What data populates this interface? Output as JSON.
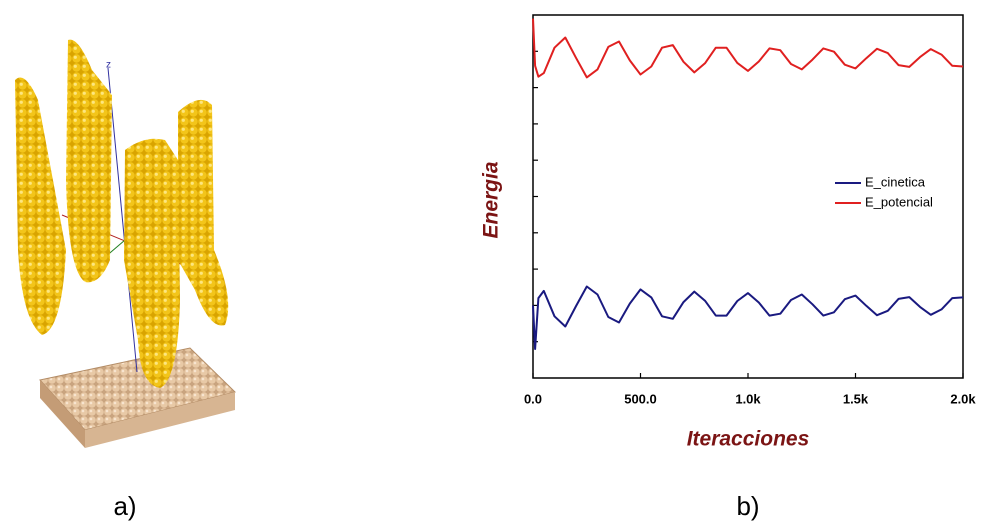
{
  "panel_labels": [
    "a)",
    "b)"
  ],
  "scene_axis_label": "z",
  "chart_data": {
    "type": "line",
    "ylabel": "Energia",
    "xlabel": "Iteracciones",
    "x": [
      0,
      10,
      25,
      50,
      100,
      150,
      200,
      250,
      300,
      350,
      400,
      450,
      500,
      550,
      600,
      650,
      700,
      750,
      800,
      850,
      900,
      950,
      1000,
      1050,
      1100,
      1150,
      1200,
      1250,
      1300,
      1350,
      1400,
      1450,
      1500,
      1550,
      1600,
      1650,
      1700,
      1750,
      1800,
      1850,
      1900,
      1950,
      2000
    ],
    "series": [
      {
        "name": "E_cinetica",
        "color": "#1a1a80",
        "values": [
          2.0,
          0.8,
          2.2,
          2.4,
          1.7,
          1.42,
          1.98,
          2.52,
          2.3,
          1.68,
          1.53,
          2.05,
          2.44,
          2.22,
          1.7,
          1.63,
          2.09,
          2.38,
          2.13,
          1.72,
          1.72,
          2.12,
          2.34,
          2.08,
          1.72,
          1.77,
          2.15,
          2.3,
          2.03,
          1.72,
          1.81,
          2.17,
          2.27,
          1.99,
          1.73,
          1.85,
          2.18,
          2.23,
          1.96,
          1.74,
          1.89,
          2.2,
          2.22
        ]
      },
      {
        "name": "E_potencial",
        "color": "#e02020",
        "values": [
          9.9,
          8.6,
          8.3,
          8.4,
          9.1,
          9.38,
          8.82,
          8.28,
          8.5,
          9.12,
          9.27,
          8.75,
          8.36,
          8.58,
          9.1,
          9.17,
          8.71,
          8.42,
          8.67,
          9.1,
          9.1,
          8.68,
          8.46,
          8.72,
          9.08,
          9.03,
          8.65,
          8.5,
          8.77,
          9.08,
          8.99,
          8.63,
          8.53,
          8.81,
          9.07,
          8.95,
          8.62,
          8.57,
          8.84,
          9.06,
          8.91,
          8.6,
          8.58
        ]
      }
    ],
    "xlim": [
      0,
      2000
    ],
    "xticks": [
      {
        "value": 0,
        "label": "0.0"
      },
      {
        "value": 500,
        "label": "500.0"
      },
      {
        "value": 1000,
        "label": "1.0k"
      },
      {
        "value": 1500,
        "label": "1.5k"
      },
      {
        "value": 2000,
        "label": "2.0k"
      }
    ],
    "ylim": [
      0,
      10
    ],
    "yticks": [
      1,
      2,
      3,
      4,
      5,
      6,
      7,
      8,
      9
    ],
    "ytick_labels": false,
    "legend": "right",
    "grid": false
  }
}
